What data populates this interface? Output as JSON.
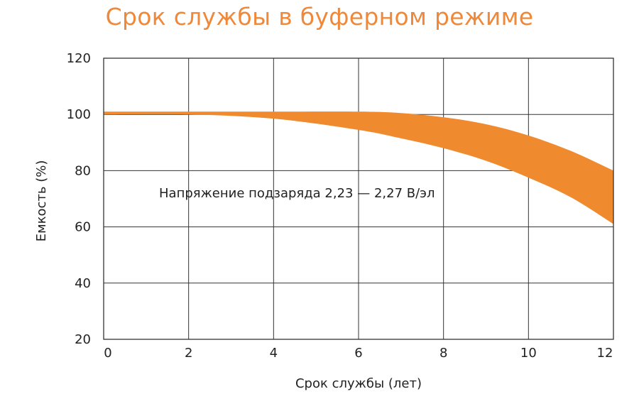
{
  "chart_data": {
    "type": "area",
    "title": "Срок службы в буферном режиме",
    "xlabel": "Срок службы (лет)",
    "ylabel": "Емкость (%)",
    "xlim": [
      0,
      12
    ],
    "ylim": [
      20,
      120
    ],
    "x_ticks": [
      "0",
      "2",
      "4",
      "6",
      "8",
      "10",
      "12"
    ],
    "y_ticks": [
      "20",
      "40",
      "60",
      "80",
      "100",
      "120"
    ],
    "grid": true,
    "fill_color": "#f08a2e",
    "annotation": "Напряжение подзаряда 2,23 — 2,27 В/эл",
    "series": [
      {
        "name": "upper",
        "x": [
          0,
          2,
          4,
          6,
          7,
          8,
          9,
          10,
          11,
          12
        ],
        "values": [
          101,
          101,
          101,
          101,
          100.5,
          99,
          96.5,
          92.5,
          87,
          80
        ]
      },
      {
        "name": "lower",
        "x": [
          0,
          2,
          4,
          6,
          7,
          8,
          9,
          10,
          11,
          12
        ],
        "values": [
          100,
          100,
          98.5,
          94.5,
          91.5,
          88,
          83.5,
          77.5,
          70.5,
          61
        ]
      }
    ]
  }
}
